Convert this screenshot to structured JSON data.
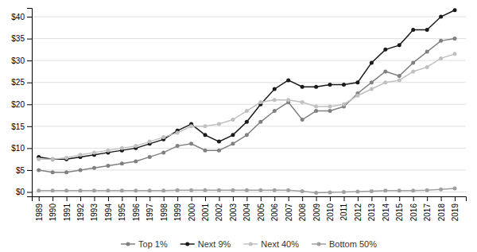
{
  "chart_data": {
    "type": "line",
    "x": [
      1989,
      1990,
      1991,
      1992,
      1993,
      1994,
      1995,
      1996,
      1997,
      1998,
      1999,
      2000,
      2001,
      2002,
      2003,
      2004,
      2005,
      2006,
      2007,
      2008,
      2009,
      2010,
      2011,
      2012,
      2013,
      2014,
      2015,
      2016,
      2017,
      2018,
      2019
    ],
    "series": [
      {
        "name": "Top 1%",
        "color": "#808080",
        "values": [
          5.0,
          4.5,
          4.5,
          5.0,
          5.5,
          6.0,
          6.5,
          7.0,
          8.0,
          9.0,
          10.5,
          11.0,
          9.5,
          9.5,
          11.0,
          13.0,
          16.0,
          18.5,
          20.5,
          16.5,
          18.5,
          18.5,
          19.5,
          22.5,
          25.0,
          27.5,
          26.5,
          29.5,
          32.0,
          34.5,
          35.0
        ]
      },
      {
        "name": "Next 9%",
        "color": "#1a1a1a",
        "values": [
          8.0,
          7.5,
          7.5,
          8.0,
          8.5,
          9.0,
          9.5,
          10.0,
          11.0,
          12.0,
          14.0,
          15.5,
          13.0,
          11.5,
          13.0,
          16.0,
          20.0,
          23.5,
          25.5,
          24.0,
          24.0,
          24.5,
          24.5,
          25.0,
          29.5,
          32.5,
          33.5,
          37.0,
          37.0,
          40.0,
          41.5
        ]
      },
      {
        "name": "Next 40%",
        "color": "#c0c0c0",
        "values": [
          7.5,
          7.5,
          7.8,
          8.5,
          9.0,
          9.5,
          10.0,
          10.5,
          11.5,
          12.5,
          13.5,
          15.0,
          15.0,
          15.5,
          16.5,
          18.5,
          20.5,
          21.0,
          21.0,
          20.5,
          19.5,
          19.5,
          20.0,
          22.0,
          23.5,
          25.0,
          25.5,
          27.5,
          28.5,
          30.5,
          31.5
        ]
      },
      {
        "name": "Bottom 50%",
        "color": "#a0a0a0",
        "values": [
          0.3,
          0.3,
          0.3,
          0.3,
          0.3,
          0.3,
          0.3,
          0.3,
          0.3,
          0.3,
          0.4,
          0.4,
          0.4,
          0.4,
          0.4,
          0.4,
          0.4,
          0.4,
          0.4,
          0.2,
          -0.2,
          -0.1,
          0.0,
          0.1,
          0.2,
          0.3,
          0.3,
          0.3,
          0.4,
          0.6,
          0.8
        ]
      }
    ],
    "marker": "circle",
    "xlim": [
      1988.5,
      2019.8
    ],
    "xticks": [
      1989,
      1990,
      1991,
      1992,
      1993,
      1994,
      1995,
      1996,
      1997,
      1998,
      1999,
      2000,
      2001,
      2002,
      2003,
      2004,
      2005,
      2006,
      2007,
      2008,
      2009,
      2010,
      2011,
      2012,
      2013,
      2014,
      2015,
      2016,
      2017,
      2018,
      2019
    ],
    "ylim": [
      -1,
      42
    ],
    "yticks": [
      {
        "value": 0,
        "label": "$0"
      },
      {
        "value": 5,
        "label": "$5"
      },
      {
        "value": 10,
        "label": "$10"
      },
      {
        "value": 15,
        "label": "$15"
      },
      {
        "value": 20,
        "label": "$20"
      },
      {
        "value": 25,
        "label": "$25"
      },
      {
        "value": 30,
        "label": "$30"
      },
      {
        "value": 35,
        "label": "$35"
      },
      {
        "value": 40,
        "label": "$40"
      }
    ],
    "grid": true,
    "legend": "bottom"
  }
}
